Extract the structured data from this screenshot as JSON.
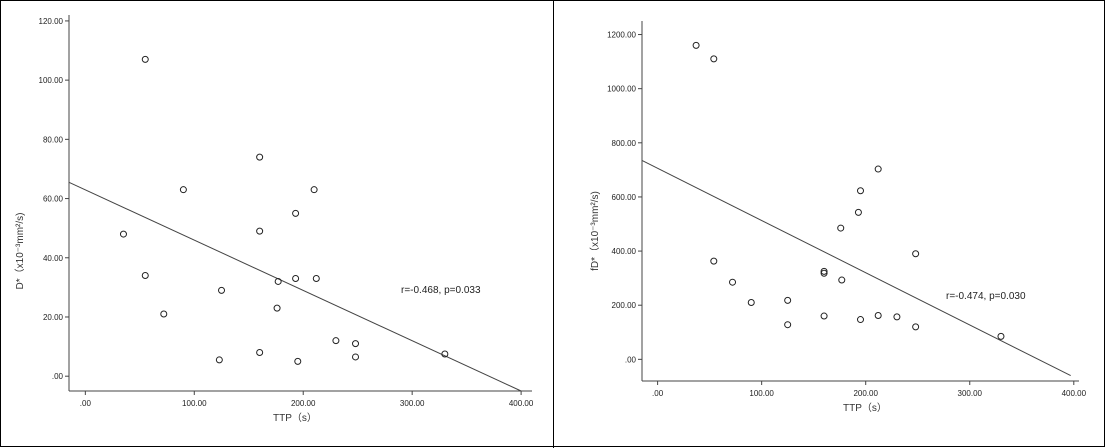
{
  "chart_data": [
    {
      "type": "scatter",
      "xlabel": "TTP（s）",
      "ylabel": "D*（x10⁻³mm²/s)",
      "xticks": [
        ".00",
        "100.00",
        "200.00",
        "300.00",
        "400.00"
      ],
      "yticks": [
        ".00",
        "20.00",
        "40.00",
        "60.00",
        "80.00",
        "100.00",
        "120.00"
      ],
      "xlim": [
        -15,
        410
      ],
      "ylim": [
        -5,
        122
      ],
      "grid": false,
      "annotation": "r=-0.468, p=0.033",
      "fit_line": {
        "x": [
          -15,
          400
        ],
        "y": [
          65.5,
          -5
        ]
      },
      "points": [
        {
          "x": 55,
          "y": 107
        },
        {
          "x": 160,
          "y": 74
        },
        {
          "x": 90,
          "y": 63
        },
        {
          "x": 210,
          "y": 63
        },
        {
          "x": 193,
          "y": 55
        },
        {
          "x": 160,
          "y": 49
        },
        {
          "x": 35,
          "y": 48
        },
        {
          "x": 55,
          "y": 34
        },
        {
          "x": 193,
          "y": 33
        },
        {
          "x": 212,
          "y": 33
        },
        {
          "x": 177,
          "y": 32
        },
        {
          "x": 125,
          "y": 29
        },
        {
          "x": 176,
          "y": 23
        },
        {
          "x": 72,
          "y": 21
        },
        {
          "x": 230,
          "y": 12
        },
        {
          "x": 248,
          "y": 11
        },
        {
          "x": 160,
          "y": 8
        },
        {
          "x": 330,
          "y": 7.5
        },
        {
          "x": 248,
          "y": 6.5
        },
        {
          "x": 123,
          "y": 5.5
        },
        {
          "x": 195,
          "y": 5
        }
      ]
    },
    {
      "type": "scatter",
      "xlabel": "TTP（s）",
      "ylabel": "fD*（x10⁻³mm²/s)",
      "xticks": [
        ".00",
        "100.00",
        "200.00",
        "300.00",
        "400.00"
      ],
      "yticks": [
        ".00",
        "200.00",
        "400.00",
        "600.00",
        "800.00",
        "1000.00",
        "1200.00"
      ],
      "xlim": [
        -15,
        405
      ],
      "ylim": [
        -80,
        1250
      ],
      "grid": false,
      "annotation": "r=-0.474, p=0.030",
      "fit_line": {
        "x": [
          -15,
          397
        ],
        "y": [
          735,
          -60
        ]
      },
      "points": [
        {
          "x": 37,
          "y": 1160
        },
        {
          "x": 54,
          "y": 1110
        },
        {
          "x": 212,
          "y": 703
        },
        {
          "x": 195,
          "y": 623
        },
        {
          "x": 193,
          "y": 543
        },
        {
          "x": 176,
          "y": 485
        },
        {
          "x": 248,
          "y": 390
        },
        {
          "x": 54,
          "y": 363
        },
        {
          "x": 160,
          "y": 325
        },
        {
          "x": 160,
          "y": 318
        },
        {
          "x": 177,
          "y": 293
        },
        {
          "x": 72,
          "y": 285
        },
        {
          "x": 125,
          "y": 218
        },
        {
          "x": 90,
          "y": 210
        },
        {
          "x": 160,
          "y": 160
        },
        {
          "x": 212,
          "y": 162
        },
        {
          "x": 230,
          "y": 157
        },
        {
          "x": 195,
          "y": 147
        },
        {
          "x": 125,
          "y": 128
        },
        {
          "x": 248,
          "y": 120
        },
        {
          "x": 330,
          "y": 85
        }
      ]
    }
  ]
}
